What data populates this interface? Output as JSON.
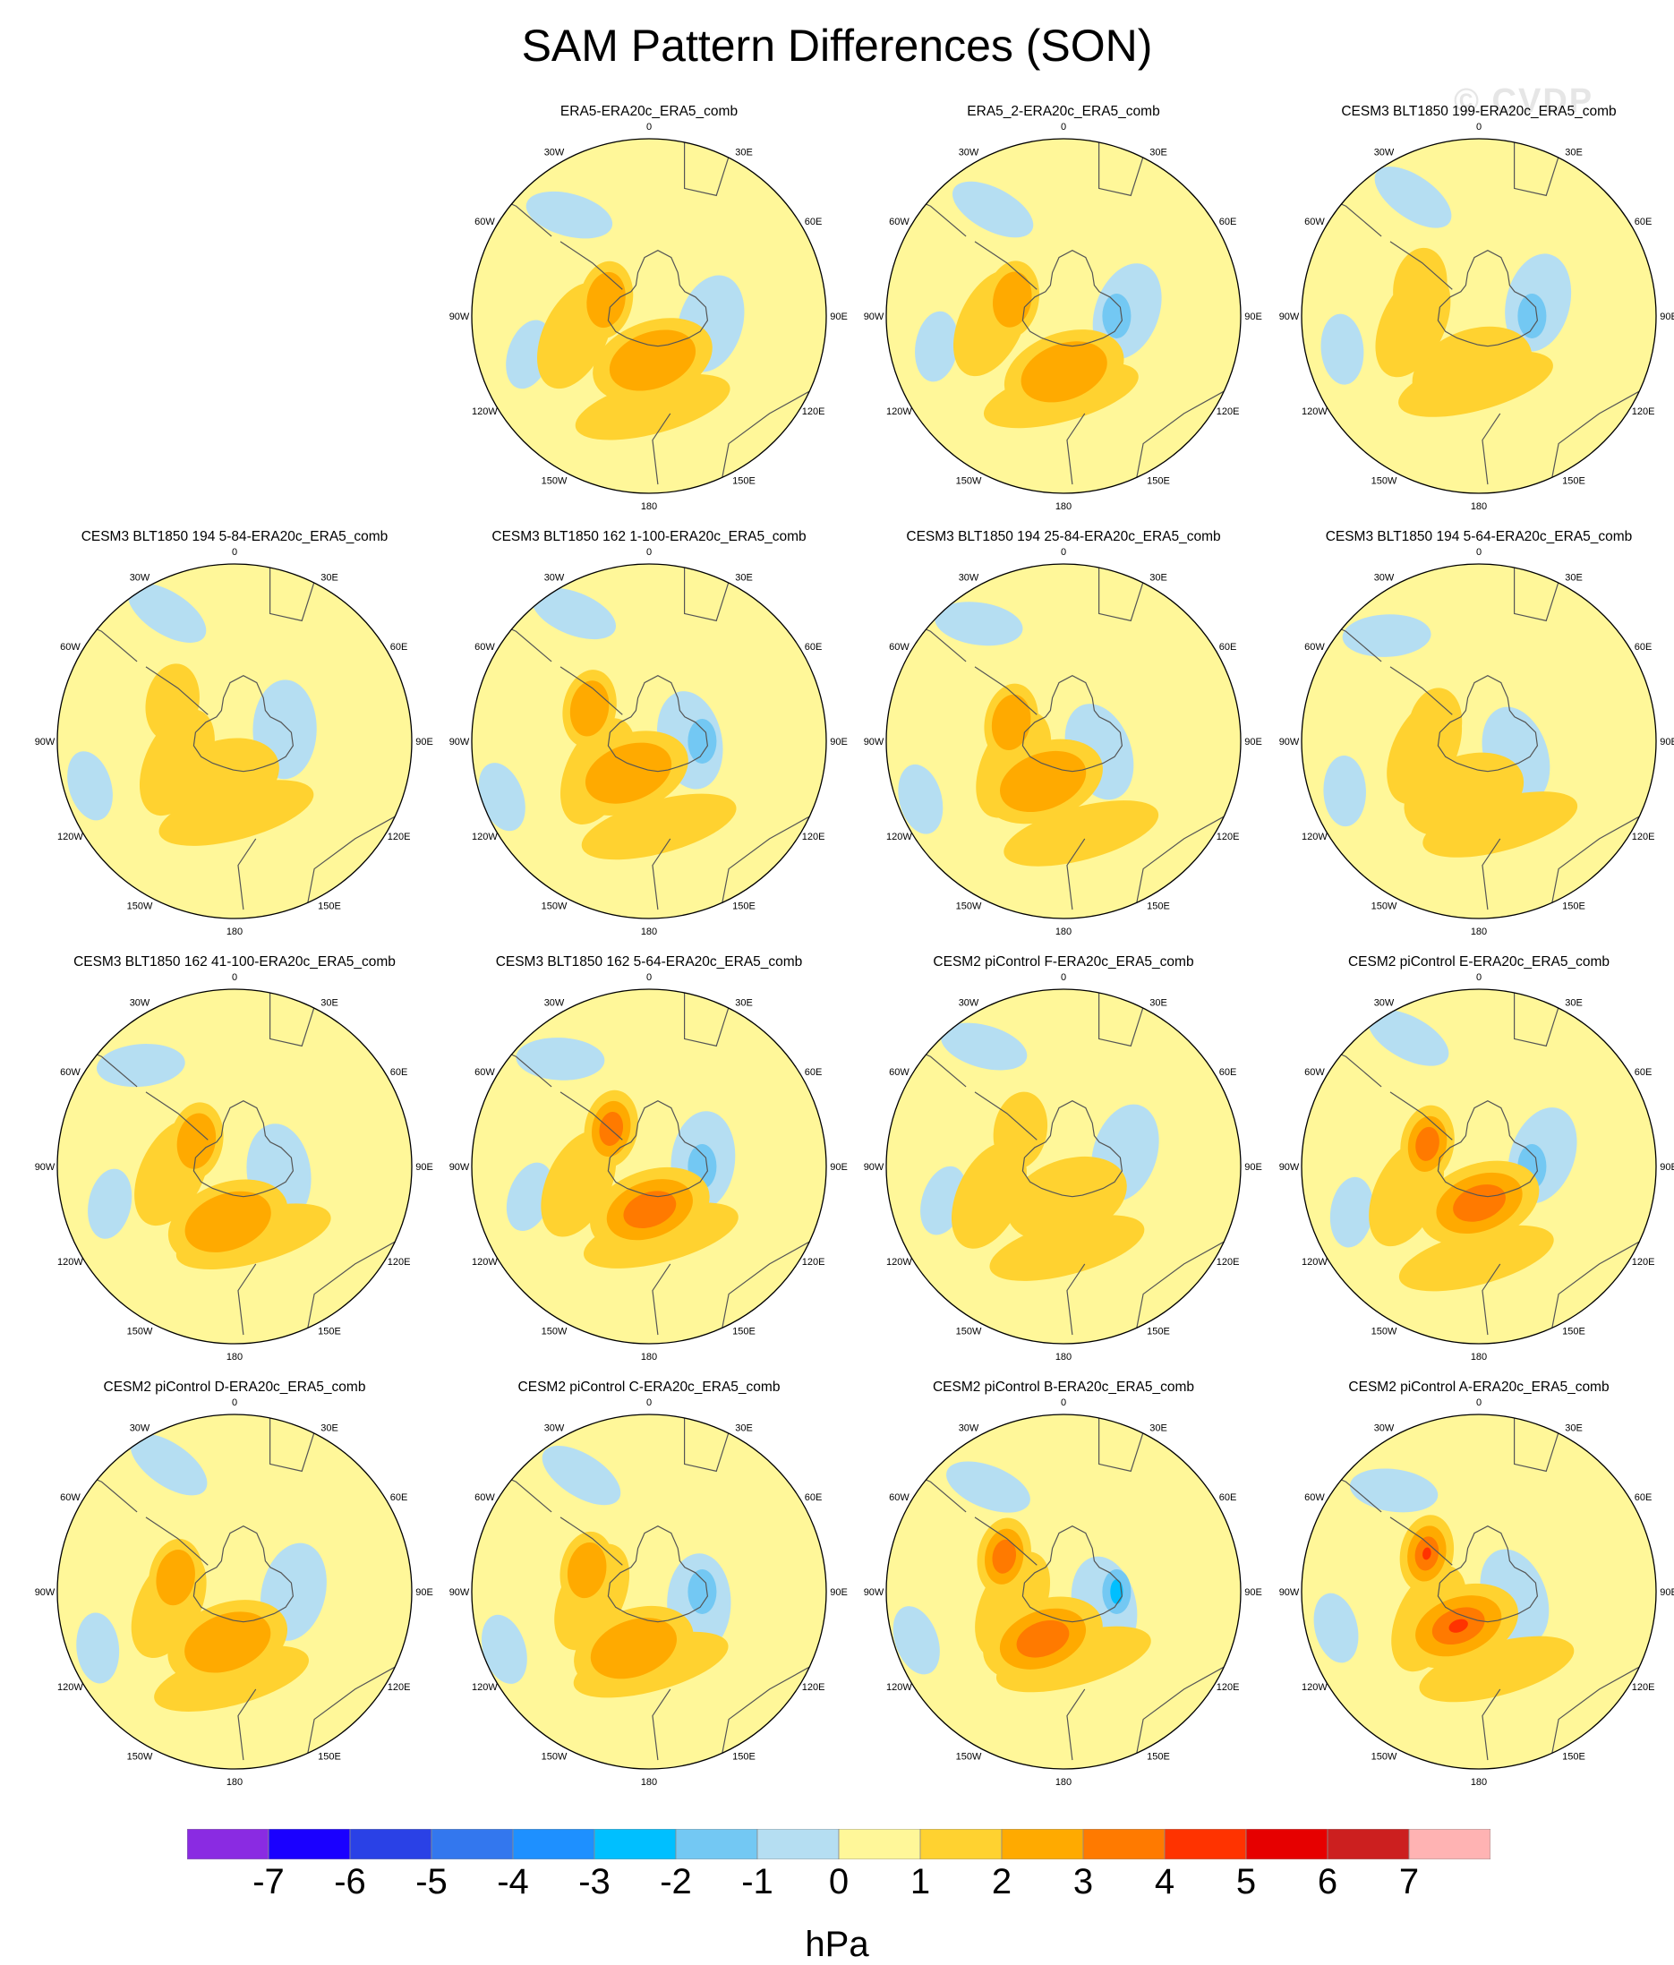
{
  "title": "SAM Pattern Differences (SON)",
  "watermark": "© CVDP",
  "lon_labels": [
    "0",
    "30E",
    "60E",
    "90E",
    "120E",
    "150E",
    "180",
    "150W",
    "120W",
    "90W",
    "60W",
    "30W"
  ],
  "colors": {
    "land_outline": "#555555",
    "levels": [
      "#8a2be2",
      "#1a00ff",
      "#2a41e6",
      "#3377ee",
      "#1e90ff",
      "#00bfff",
      "#73c8f3",
      "#b5def2",
      "#fff799",
      "#ffd230",
      "#ffaa00",
      "#ff7a00",
      "#ff3300",
      "#e60000",
      "#cc1f1f",
      "#ffb3b3"
    ]
  },
  "colorbar": {
    "labels": [
      "-7",
      "-6",
      "-5",
      "-4",
      "-3",
      "-2",
      "-1",
      "0",
      "1",
      "2",
      "3",
      "4",
      "5",
      "6",
      "7"
    ],
    "units": "hPa"
  },
  "panels": [
    {
      "title": "ERA5-ERA20c_ERA5_comb",
      "row": 0,
      "col": 1,
      "max_level": 10,
      "min_level": 7
    },
    {
      "title": "ERA5_2-ERA20c_ERA5_comb",
      "row": 0,
      "col": 2,
      "max_level": 10,
      "min_level": 6
    },
    {
      "title": "CESM3 BLT1850 199-ERA20c_ERA5_comb",
      "row": 0,
      "col": 3,
      "max_level": 9,
      "min_level": 6
    },
    {
      "title": "CESM3 BLT1850 194 5-84-ERA20c_ERA5_comb",
      "row": 1,
      "col": 0,
      "max_level": 9,
      "min_level": 7
    },
    {
      "title": "CESM3 BLT1850 162 1-100-ERA20c_ERA5_comb",
      "row": 1,
      "col": 1,
      "max_level": 10,
      "min_level": 6
    },
    {
      "title": "CESM3 BLT1850 194 25-84-ERA20c_ERA5_comb",
      "row": 1,
      "col": 2,
      "max_level": 10,
      "min_level": 7
    },
    {
      "title": "CESM3 BLT1850 194 5-64-ERA20c_ERA5_comb",
      "row": 1,
      "col": 3,
      "max_level": 9,
      "min_level": 7
    },
    {
      "title": "CESM3 BLT1850 162 41-100-ERA20c_ERA5_comb",
      "row": 2,
      "col": 0,
      "max_level": 10,
      "min_level": 7
    },
    {
      "title": "CESM3 BLT1850 162 5-64-ERA20c_ERA5_comb",
      "row": 2,
      "col": 1,
      "max_level": 11,
      "min_level": 6
    },
    {
      "title": "CESM2 piControl F-ERA20c_ERA5_comb",
      "row": 2,
      "col": 2,
      "max_level": 9,
      "min_level": 7
    },
    {
      "title": "CESM2 piControl E-ERA20c_ERA5_comb",
      "row": 2,
      "col": 3,
      "max_level": 11,
      "min_level": 6
    },
    {
      "title": "CESM2 piControl D-ERA20c_ERA5_comb",
      "row": 3,
      "col": 0,
      "max_level": 10,
      "min_level": 7
    },
    {
      "title": "CESM2 piControl C-ERA20c_ERA5_comb",
      "row": 3,
      "col": 1,
      "max_level": 10,
      "min_level": 6
    },
    {
      "title": "CESM2 piControl B-ERA20c_ERA5_comb",
      "row": 3,
      "col": 2,
      "max_level": 11,
      "min_level": 5
    },
    {
      "title": "CESM2 piControl A-ERA20c_ERA5_comb",
      "row": 3,
      "col": 3,
      "max_level": 12,
      "min_level": 7
    }
  ]
}
